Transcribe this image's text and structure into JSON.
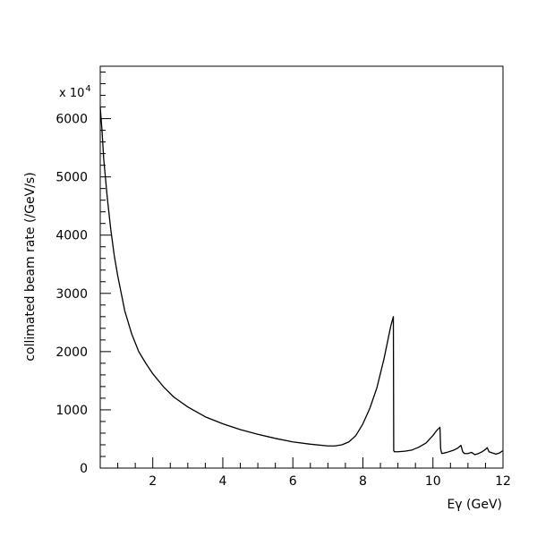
{
  "chart_data": {
    "type": "line",
    "title": "",
    "xlabel": "Eγ (GeV)",
    "ylabel": "collimated beam rate (/GeV/s)",
    "y_multiplier": "x 10",
    "y_multiplier_exponent": "4",
    "xlim": [
      0.5,
      12
    ],
    "ylim": [
      0,
      6900
    ],
    "x_ticks": [
      2,
      4,
      6,
      8,
      10,
      12
    ],
    "y_ticks": [
      0,
      1000,
      2000,
      3000,
      4000,
      5000,
      6000
    ],
    "grid": false,
    "line_color": "#000000",
    "series": [
      {
        "x": [
          0.5,
          0.55,
          0.6,
          0.7,
          0.8,
          0.9,
          1.0,
          1.2,
          1.4,
          1.6,
          1.8,
          2.0,
          2.3,
          2.6,
          3.0,
          3.5,
          4.0,
          4.5,
          5.0,
          5.5,
          6.0,
          6.5,
          7.0,
          7.2,
          7.4,
          7.6,
          7.8,
          8.0,
          8.2,
          8.4,
          8.6,
          8.8,
          8.87,
          8.88,
          8.9,
          9.0,
          9.2,
          9.4,
          9.6,
          9.8,
          10.0,
          10.1,
          10.2,
          10.22,
          10.25,
          10.4,
          10.6,
          10.7,
          10.8,
          10.85,
          10.9,
          11.0,
          11.1,
          11.2,
          11.3,
          11.4,
          11.5,
          11.55,
          11.6,
          11.7,
          11.8,
          11.9,
          12.0
        ],
        "y": [
          6200,
          5800,
          5300,
          4650,
          4100,
          3650,
          3300,
          2700,
          2300,
          2000,
          1800,
          1620,
          1400,
          1220,
          1050,
          880,
          760,
          660,
          580,
          510,
          450,
          410,
          380,
          380,
          400,
          450,
          560,
          760,
          1030,
          1380,
          1870,
          2450,
          2600,
          300,
          280,
          280,
          290,
          310,
          360,
          430,
          560,
          640,
          700,
          330,
          250,
          270,
          310,
          340,
          390,
          280,
          250,
          250,
          270,
          230,
          250,
          280,
          320,
          350,
          280,
          260,
          240,
          260,
          300
        ]
      }
    ]
  }
}
